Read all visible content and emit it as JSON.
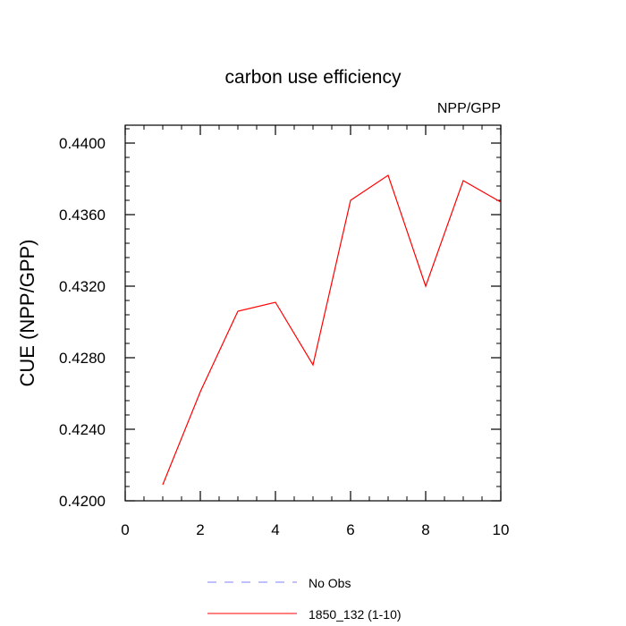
{
  "chart_data": {
    "type": "line",
    "title": "carbon use efficiency",
    "subtitle": "NPP/GPP",
    "xlabel": "",
    "ylabel": "CUE  (NPP/GPP)",
    "xlim": [
      0,
      10
    ],
    "ylim": [
      0.42,
      0.441
    ],
    "x_ticks": [
      0,
      2,
      4,
      6,
      8,
      10
    ],
    "x_tick_labels": [
      "0",
      "2",
      "4",
      "6",
      "8",
      "10"
    ],
    "y_ticks": [
      0.42,
      0.424,
      0.428,
      0.432,
      0.436,
      0.44
    ],
    "y_tick_labels": [
      "0.4200",
      "0.4240",
      "0.4280",
      "0.4320",
      "0.4360",
      "0.4400"
    ],
    "grid": false,
    "legend_position": "bottom",
    "series": [
      {
        "name": "1850_132 (1-10)",
        "color": "#ff0000",
        "dash": "solid",
        "x": [
          1,
          2,
          3,
          4,
          5,
          6,
          7,
          8,
          9,
          10
        ],
        "values": [
          0.4209,
          0.4261,
          0.4306,
          0.4311,
          0.4276,
          0.4368,
          0.4382,
          0.432,
          0.4379,
          0.4367
        ]
      }
    ],
    "legend": [
      {
        "label": "No Obs",
        "color": "#8080ff",
        "dash": "dashed"
      },
      {
        "label": "1850_132 (1-10)",
        "color": "#ff0000",
        "dash": "solid"
      }
    ]
  }
}
